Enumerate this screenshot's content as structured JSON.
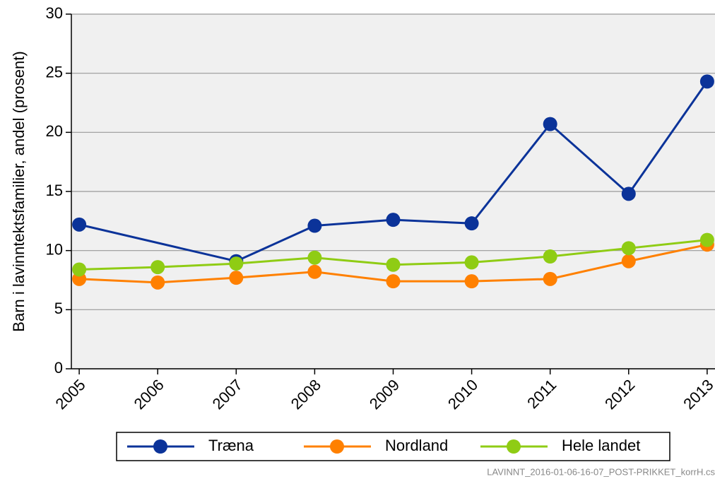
{
  "chart_data": {
    "type": "line",
    "y_label": "Barn i lavinntektsfamilier, andel (prosent)",
    "x": [
      2005,
      2006,
      2007,
      2008,
      2009,
      2010,
      2011,
      2012,
      2013
    ],
    "series": [
      {
        "name": "Træna",
        "color": "#0b3399",
        "x": [
          2005,
          2007,
          2008,
          2009,
          2010,
          2011,
          2012,
          2013
        ],
        "values": [
          12.2,
          9.1,
          12.1,
          12.6,
          12.3,
          20.7,
          14.8,
          24.3
        ]
      },
      {
        "name": "Nordland",
        "color": "#ff8000",
        "values": [
          7.6,
          7.3,
          7.7,
          8.2,
          7.4,
          7.4,
          7.6,
          9.1,
          10.5
        ]
      },
      {
        "name": "Hele landet",
        "color": "#8fcc14",
        "values": [
          8.4,
          8.6,
          8.9,
          9.4,
          8.8,
          9.0,
          9.5,
          10.2,
          10.9
        ]
      }
    ],
    "xlim": [
      2004.9,
      2013.1
    ],
    "xticks": [
      2005,
      2006,
      2007,
      2008,
      2009,
      2010,
      2011,
      2012,
      2013
    ],
    "ylim": [
      0,
      30
    ],
    "yticks": [
      0,
      5,
      10,
      15,
      20,
      25,
      30
    ],
    "grid": true,
    "footnote": "LAVINNT_2016-01-06-16-07_POST-PRIKKET_korrH.cs"
  }
}
